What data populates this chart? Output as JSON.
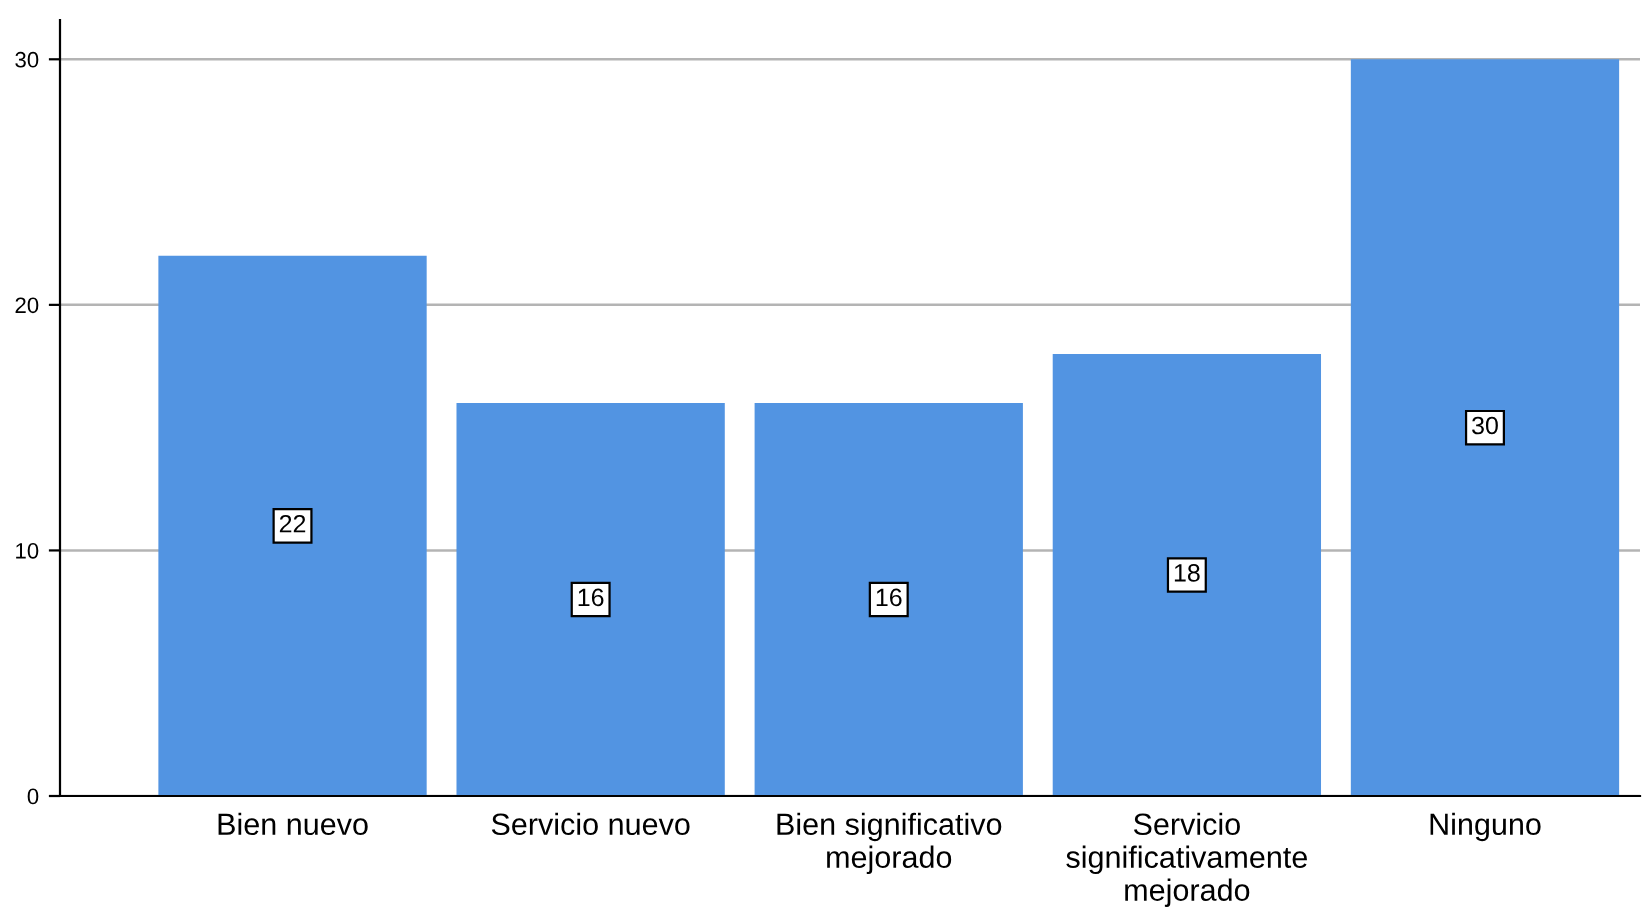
{
  "chart_data": {
    "type": "bar",
    "categories": [
      "Bien nuevo",
      "Servicio nuevo",
      "Bien significativo\nmejorado",
      "Servicio\nsignificativamente\nmejorado",
      "Ninguno"
    ],
    "values": [
      22,
      16,
      16,
      18,
      30
    ],
    "color": "#5294e2",
    "ylim": [
      0,
      31.6
    ],
    "yticks": [
      0,
      10,
      20,
      30
    ],
    "grid": "y",
    "data_labels": true
  }
}
